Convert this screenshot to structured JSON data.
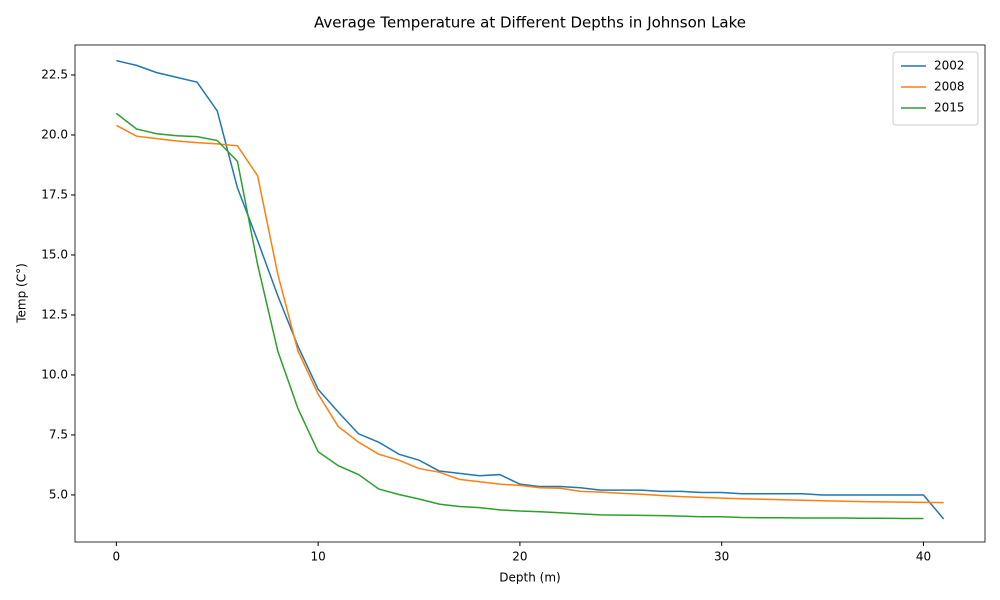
{
  "chart_data": {
    "type": "line",
    "title": "Average Temperature at Different Depths in Johnson Lake",
    "xlabel": "Depth (m)",
    "ylabel": "Temp (C°)",
    "x": [
      0,
      1,
      2,
      3,
      4,
      5,
      6,
      7,
      8,
      9,
      10,
      11,
      12,
      13,
      14,
      15,
      16,
      17,
      18,
      19,
      20,
      21,
      22,
      23,
      24,
      25,
      26,
      27,
      28,
      29,
      30,
      31,
      32,
      33,
      34,
      35,
      36,
      37,
      38,
      39,
      40,
      41
    ],
    "series": [
      {
        "name": "2002",
        "color": "#1f77b4",
        "values": [
          23.1,
          22.9,
          22.6,
          22.4,
          22.2,
          21.0,
          17.8,
          15.6,
          13.3,
          11.2,
          9.4,
          8.45,
          7.55,
          7.2,
          6.7,
          6.45,
          6.0,
          5.9,
          5.8,
          5.85,
          5.45,
          5.35,
          5.35,
          5.3,
          5.2,
          5.2,
          5.2,
          5.15,
          5.15,
          5.1,
          5.1,
          5.05,
          5.05,
          5.05,
          5.05,
          5.0,
          5.0,
          5.0,
          5.0,
          5.0,
          5.0,
          4.0
        ]
      },
      {
        "name": "2008",
        "color": "#ff7f0e",
        "values": [
          20.4,
          19.95,
          19.85,
          19.75,
          19.68,
          19.63,
          19.55,
          18.3,
          14.2,
          11.0,
          9.2,
          7.85,
          7.2,
          6.7,
          6.45,
          6.1,
          5.95,
          5.65,
          5.55,
          5.45,
          5.4,
          5.3,
          5.28,
          5.15,
          5.12,
          5.07,
          5.03,
          4.98,
          4.93,
          4.9,
          4.87,
          4.84,
          4.82,
          4.8,
          4.78,
          4.76,
          4.74,
          4.72,
          4.71,
          4.7,
          4.69,
          4.68
        ]
      },
      {
        "name": "2015",
        "color": "#2ca02c",
        "values": [
          20.9,
          20.25,
          20.05,
          19.97,
          19.93,
          19.77,
          18.9,
          14.6,
          11.0,
          8.6,
          6.8,
          6.22,
          5.85,
          5.25,
          5.02,
          4.83,
          4.62,
          4.52,
          4.47,
          4.38,
          4.33,
          4.3,
          4.26,
          4.21,
          4.17,
          4.16,
          4.15,
          4.14,
          4.12,
          4.09,
          4.09,
          4.06,
          4.05,
          4.05,
          4.04,
          4.04,
          4.04,
          4.03,
          4.03,
          4.02,
          4.02,
          null
        ]
      }
    ],
    "xlim": [
      -2.05,
      43.05
    ],
    "xticks": [
      0,
      10,
      20,
      30,
      40
    ],
    "ylim": [
      3.04,
      23.75
    ],
    "yticks": [
      {
        "value": 5,
        "label": "5.0"
      },
      7.5,
      {
        "value": 10,
        "label": "10.0"
      },
      12.5,
      {
        "value": 15,
        "label": "15.0"
      },
      17.5,
      {
        "value": 20,
        "label": "20.0"
      },
      22.5
    ],
    "grid": false,
    "legend": "upper right"
  }
}
